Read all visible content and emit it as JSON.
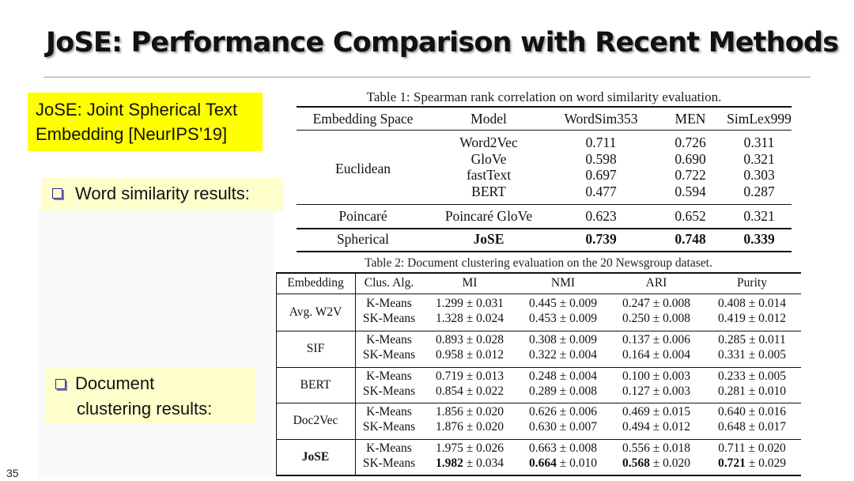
{
  "slide": {
    "title": "JoSE: Performance Comparison with Recent Methods",
    "page_number": "35"
  },
  "callout": {
    "line1": "JoSE: Joint Spherical Text",
    "line2": "Embedding [NeurIPS’19]"
  },
  "bullets": {
    "word_similarity": "Word similarity results:",
    "doc_clustering_line1": "Document",
    "doc_clustering_line2": "clustering results:"
  },
  "table1": {
    "caption": "Table 1: Spearman rank correlation on word similarity evaluation.",
    "headers": [
      "Embedding Space",
      "Model",
      "WordSim353",
      "MEN",
      "SimLex999"
    ],
    "groups": [
      {
        "space": "Euclidean",
        "rows": [
          [
            "Word2Vec",
            "0.711",
            "0.726",
            "0.311"
          ],
          [
            "GloVe",
            "0.598",
            "0.690",
            "0.321"
          ],
          [
            "fastText",
            "0.697",
            "0.722",
            "0.303"
          ],
          [
            "BERT",
            "0.477",
            "0.594",
            "0.287"
          ]
        ]
      },
      {
        "space": "Poincaré",
        "rows": [
          [
            "Poincaré GloVe",
            "0.623",
            "0.652",
            "0.321"
          ]
        ]
      },
      {
        "space": "Spherical",
        "rows": [
          [
            "JoSE",
            "0.739",
            "0.748",
            "0.339"
          ]
        ]
      }
    ]
  },
  "table2": {
    "caption": "Table 2: Document clustering evaluation on the 20 Newsgroup dataset.",
    "headers": [
      "Embedding",
      "Clus. Alg.",
      "MI",
      "NMI",
      "ARI",
      "Purity"
    ],
    "groups": [
      {
        "embedding": "Avg. W2V",
        "rows": [
          [
            "K-Means",
            "1.299 ± 0.031",
            "0.445 ± 0.009",
            "0.247 ± 0.008",
            "0.408 ± 0.014"
          ],
          [
            "SK-Means",
            "1.328 ± 0.024",
            "0.453 ± 0.009",
            "0.250 ± 0.008",
            "0.419 ± 0.012"
          ]
        ]
      },
      {
        "embedding": "SIF",
        "rows": [
          [
            "K-Means",
            "0.893 ± 0.028",
            "0.308 ± 0.009",
            "0.137 ± 0.006",
            "0.285 ± 0.011"
          ],
          [
            "SK-Means",
            "0.958 ± 0.012",
            "0.322 ± 0.004",
            "0.164 ± 0.004",
            "0.331 ± 0.005"
          ]
        ]
      },
      {
        "embedding": "BERT",
        "rows": [
          [
            "K-Means",
            "0.719 ± 0.013",
            "0.248 ± 0.004",
            "0.100 ± 0.003",
            "0.233 ± 0.005"
          ],
          [
            "SK-Means",
            "0.854 ± 0.022",
            "0.289 ± 0.008",
            "0.127 ± 0.003",
            "0.281 ± 0.010"
          ]
        ]
      },
      {
        "embedding": "Doc2Vec",
        "rows": [
          [
            "K-Means",
            "1.856 ± 0.020",
            "0.626 ± 0.006",
            "0.469 ± 0.015",
            "0.640 ± 0.016"
          ],
          [
            "SK-Means",
            "1.876 ± 0.020",
            "0.630 ± 0.007",
            "0.494 ± 0.012",
            "0.648 ± 0.017"
          ]
        ]
      },
      {
        "embedding": "JoSE",
        "rows": [
          [
            "K-Means",
            "1.975 ± 0.026",
            "0.663 ± 0.008",
            "0.556 ± 0.018",
            "0.711 ± 0.020"
          ],
          [
            "SK-Means",
            "1.982 ± 0.034",
            "0.664 ± 0.010",
            "0.568 ± 0.020",
            "0.721 ± 0.029"
          ]
        ]
      }
    ]
  }
}
